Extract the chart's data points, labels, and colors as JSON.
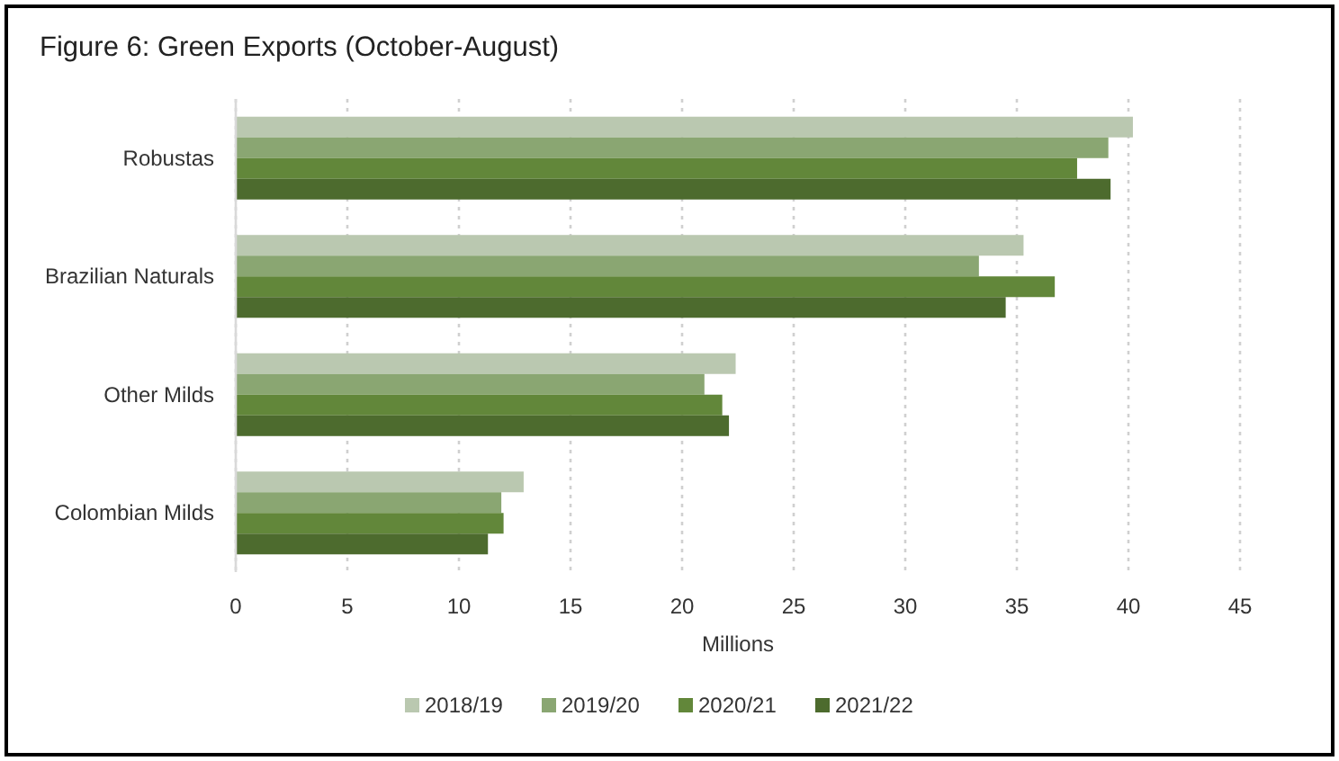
{
  "chart_data": {
    "type": "bar",
    "orientation": "horizontal",
    "title": "Figure 6: Green Exports (October-August)",
    "xlabel": "Millions",
    "categories": [
      "Robustas",
      "Brazilian Naturals",
      "Other Milds",
      "Colombian Milds"
    ],
    "series": [
      {
        "name": "2018/19",
        "color": "#bac8b0",
        "values": [
          40.2,
          35.3,
          22.4,
          12.9
        ]
      },
      {
        "name": "2019/20",
        "color": "#8aa672",
        "values": [
          39.1,
          33.3,
          21.0,
          11.9
        ]
      },
      {
        "name": "2020/21",
        "color": "#62873a",
        "values": [
          37.7,
          36.7,
          21.8,
          12.0
        ]
      },
      {
        "name": "2021/22",
        "color": "#4d6b2e",
        "values": [
          39.2,
          34.5,
          22.1,
          11.3
        ]
      }
    ],
    "xlim": [
      0,
      45
    ],
    "xticks": [
      0,
      5,
      10,
      15,
      20,
      25,
      30,
      35,
      40,
      45
    ],
    "grid": "x",
    "legend": "bottom"
  }
}
